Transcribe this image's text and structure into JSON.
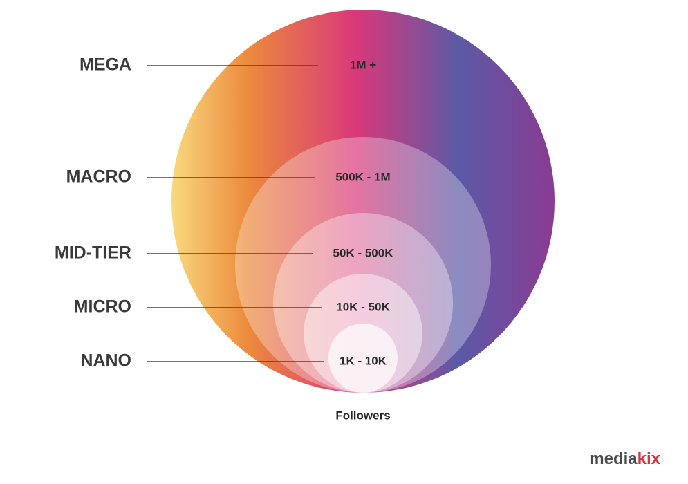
{
  "tiers": [
    {
      "label": "MEGA",
      "range": "1M +"
    },
    {
      "label": "MACRO",
      "range": "500K - 1M"
    },
    {
      "label": "MID-TIER",
      "range": "50K - 500K"
    },
    {
      "label": "MICRO",
      "range": "10K - 50K"
    },
    {
      "label": "NANO",
      "range": "1K - 10K"
    }
  ],
  "axis_label": "Followers",
  "logo": {
    "prefix": "media",
    "suffix": "kix"
  }
}
